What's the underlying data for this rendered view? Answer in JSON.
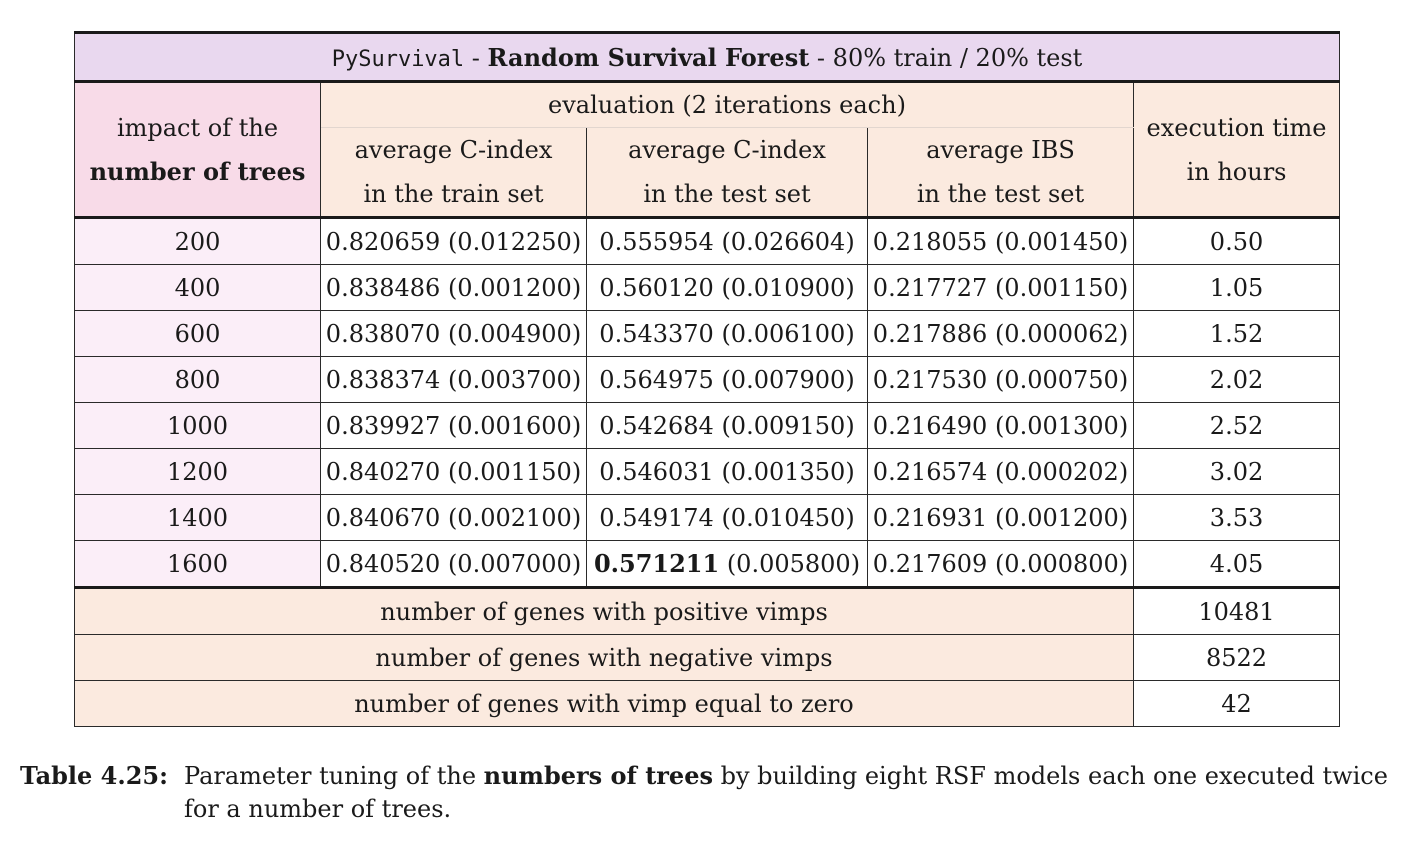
{
  "title": {
    "lib": "PySurvival",
    "sep1": " - ",
    "model": "Random Survival Forest",
    "sep2": " - ",
    "split": "80% train / 20% test"
  },
  "header": {
    "impact_line1": "impact of the",
    "impact_line2": "number of trees",
    "evaluation": "evaluation (2 iterations each)",
    "col_train_line1": "average C-index",
    "col_train_line2": "in the train set",
    "col_test_line1": "average C-index",
    "col_test_line2": "in the test set",
    "col_ibs_line1": "average IBS",
    "col_ibs_line2": "in the test set",
    "exec_line1": "execution time",
    "exec_line2": "in hours"
  },
  "rows": [
    {
      "trees": "200",
      "train": "0.820659 (0.012250)",
      "test_val": "0.555954",
      "test_sd": " (0.026604)",
      "ibs": "0.218055 (0.001450)",
      "hours": "0.50"
    },
    {
      "trees": "400",
      "train": "0.838486 (0.001200)",
      "test_val": "0.560120",
      "test_sd": " (0.010900)",
      "ibs": "0.217727 (0.001150)",
      "hours": "1.05"
    },
    {
      "trees": "600",
      "train": "0.838070 (0.004900)",
      "test_val": "0.543370",
      "test_sd": " (0.006100)",
      "ibs": "0.217886 (0.000062)",
      "hours": "1.52"
    },
    {
      "trees": "800",
      "train": "0.838374 (0.003700)",
      "test_val": "0.564975",
      "test_sd": " (0.007900)",
      "ibs": "0.217530 (0.000750)",
      "hours": "2.02"
    },
    {
      "trees": "1000",
      "train": "0.839927 (0.001600)",
      "test_val": "0.542684",
      "test_sd": " (0.009150)",
      "ibs": "0.216490 (0.001300)",
      "hours": "2.52"
    },
    {
      "trees": "1200",
      "train": "0.840270 (0.001150)",
      "test_val": "0.546031",
      "test_sd": " (0.001350)",
      "ibs": "0.216574 (0.000202)",
      "hours": "3.02"
    },
    {
      "trees": "1400",
      "train": "0.840670 (0.002100)",
      "test_val": "0.549174",
      "test_sd": " (0.010450)",
      "ibs": "0.216931 (0.001200)",
      "hours": "3.53"
    },
    {
      "trees": "1600",
      "train": "0.840520 (0.007000)",
      "test_val": "0.571211",
      "test_sd": " (0.005800)",
      "ibs": "0.217609 (0.000800)",
      "hours": "4.05"
    }
  ],
  "summary": [
    {
      "label": "number of genes with positive vimps",
      "value": "10481"
    },
    {
      "label": "number of genes with negative vimps",
      "value": "8522"
    },
    {
      "label": "number of genes with vimp equal to zero",
      "value": "42"
    }
  ],
  "caption": {
    "label": "Table 4.25:",
    "text_before": "Parameter tuning of the ",
    "text_bold": "numbers of trees",
    "text_after": " by building eight RSF models each one executed twice for a number of trees."
  },
  "colors": {
    "title_bg": "#e9d8ef",
    "impact_header_bg": "#f8dbe8",
    "eval_header_bg": "#fbeadf",
    "tree_cell_bg": "#fbeef8",
    "summary_label_bg": "#fbeadf"
  }
}
